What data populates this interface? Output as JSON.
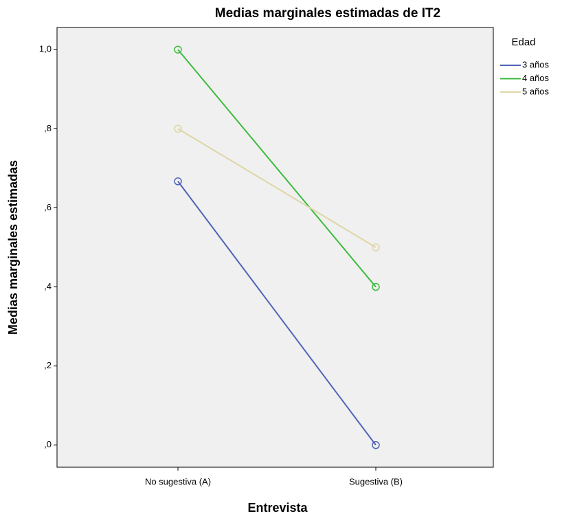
{
  "chart_data": {
    "type": "line",
    "title": "Medias marginales estimadas de IT2",
    "x_label": "Entrevista",
    "y_label": "Medias marginales estimadas",
    "legend_title": "Edad",
    "categories": [
      "No sugestiva (A)",
      "Sugestiva (B)"
    ],
    "series": [
      {
        "name": "3 años",
        "color": "#4f63b8",
        "values": [
          0.667,
          0.0
        ]
      },
      {
        "name": "4 años",
        "color": "#3dbb3d",
        "values": [
          1.0,
          0.4
        ]
      },
      {
        "name": "5 años",
        "color": "#ded6a6",
        "values": [
          0.8,
          0.5
        ]
      }
    ],
    "ylim": [
      -0.056,
      1.056
    ],
    "yticks": [
      {
        "value": 0,
        "label": ",0"
      },
      {
        "value": 0.2,
        "label": ",2"
      },
      {
        "value": 0.4,
        "label": ",4"
      },
      {
        "value": 0.6,
        "label": ",6"
      },
      {
        "value": 0.8,
        "label": ",8"
      },
      {
        "value": 1.0,
        "label": "1,0"
      }
    ],
    "legend_position": "right",
    "grid": false
  }
}
